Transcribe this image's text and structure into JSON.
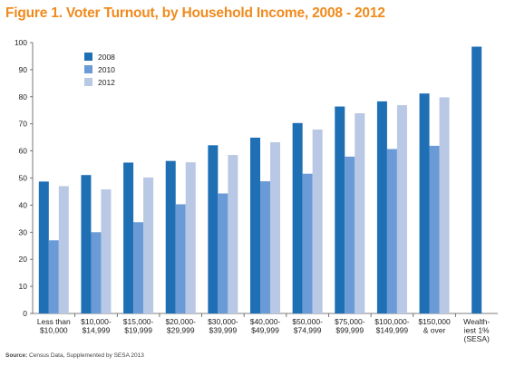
{
  "chart_data": {
    "type": "bar",
    "title": "Figure 1. Voter Turnout, by Household Income, 2008 - 2012",
    "xlabel": "",
    "ylabel": "",
    "ylim": [
      0,
      100
    ],
    "yticks": [
      0,
      10,
      20,
      30,
      40,
      50,
      60,
      70,
      80,
      90,
      100
    ],
    "grid": false,
    "legend_position": "top-left",
    "categories": [
      [
        "Less than",
        "$10,000"
      ],
      [
        "$10,000-",
        "$14,999"
      ],
      [
        "$15,000-",
        "$19,999"
      ],
      [
        "$20,000-",
        "$29,999"
      ],
      [
        "$30,000-",
        "$39,999"
      ],
      [
        "$40,000-",
        "$49,999"
      ],
      [
        "$50,000-",
        "$74,999"
      ],
      [
        "$75,000-",
        "$99,999"
      ],
      [
        "$100,000-",
        "$149,999"
      ],
      [
        "$150,000",
        "& over"
      ],
      [
        "Wealth-",
        "iest 1%",
        "(SESA)"
      ]
    ],
    "series": [
      {
        "name": "2008",
        "color": "#1f6fb5",
        "values": [
          48.7,
          51.1,
          55.7,
          56.3,
          62.1,
          64.9,
          70.3,
          76.4,
          78.3,
          81.2,
          98.5
        ]
      },
      {
        "name": "2010",
        "color": "#6b9bd6",
        "values": [
          27.0,
          30.0,
          33.7,
          40.3,
          44.3,
          48.8,
          51.6,
          57.9,
          60.7,
          61.9,
          null
        ]
      },
      {
        "name": "2012",
        "color": "#b9c8e4",
        "values": [
          47.0,
          45.8,
          50.2,
          55.8,
          58.5,
          63.2,
          67.9,
          73.9,
          76.9,
          79.8,
          null
        ]
      }
    ],
    "source_label": "Source:",
    "source_text": "Census Data, Supplemented by SESA 2013"
  }
}
